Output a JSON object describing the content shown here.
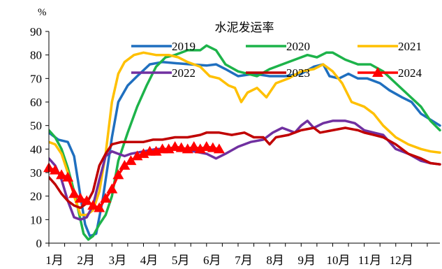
{
  "chart_data": {
    "type": "line",
    "title": "水泥发运率",
    "ylabel": "%",
    "xlabel": "",
    "ylim": [
      0,
      90
    ],
    "yticks": [
      0,
      10,
      20,
      30,
      40,
      50,
      60,
      70,
      80,
      90
    ],
    "xlim": [
      1,
      13.4
    ],
    "xtick_labels": [
      {
        "x": 1,
        "label": "1月"
      },
      {
        "x": 2,
        "label": "2月"
      },
      {
        "x": 3,
        "label": "3月"
      },
      {
        "x": 4,
        "label": "4月"
      },
      {
        "x": 5,
        "label": "5月"
      },
      {
        "x": 6,
        "label": "6月"
      },
      {
        "x": 7,
        "label": "7月"
      },
      {
        "x": 8,
        "label": "8月"
      },
      {
        "x": 9,
        "label": "9月"
      },
      {
        "x": 10,
        "label": "10月"
      },
      {
        "x": 11,
        "label": "11月"
      },
      {
        "x": 12,
        "label": "12月"
      }
    ],
    "legend_position": "top",
    "grid": false,
    "series": [
      {
        "name": "2019",
        "color": "#1f6fbf",
        "marker": "none",
        "points": [
          [
            1,
            47
          ],
          [
            1.3,
            44
          ],
          [
            1.6,
            43
          ],
          [
            1.8,
            37
          ],
          [
            2.0,
            20
          ],
          [
            2.15,
            8
          ],
          [
            2.3,
            3
          ],
          [
            2.5,
            4
          ],
          [
            2.7,
            18
          ],
          [
            3.0,
            45
          ],
          [
            3.2,
            60
          ],
          [
            3.5,
            67
          ],
          [
            3.8,
            71
          ],
          [
            4.2,
            76
          ],
          [
            4.6,
            77
          ],
          [
            5.0,
            76.5
          ],
          [
            5.5,
            76
          ],
          [
            6.0,
            75.5
          ],
          [
            6.3,
            76
          ],
          [
            6.6,
            74
          ],
          [
            7.0,
            71
          ],
          [
            7.5,
            72
          ],
          [
            8.0,
            71
          ],
          [
            8.5,
            71
          ],
          [
            9.0,
            72
          ],
          [
            9.4,
            75
          ],
          [
            9.7,
            76
          ],
          [
            9.9,
            71
          ],
          [
            10.2,
            70
          ],
          [
            10.5,
            72
          ],
          [
            10.8,
            70
          ],
          [
            11.1,
            70
          ],
          [
            11.5,
            68
          ],
          [
            11.8,
            65
          ],
          [
            12.2,
            62
          ],
          [
            12.5,
            60
          ],
          [
            12.8,
            55
          ],
          [
            13.4,
            50
          ]
        ]
      },
      {
        "name": "2020",
        "color": "#1db34a",
        "marker": "none",
        "points": [
          [
            1,
            48
          ],
          [
            1.2,
            45
          ],
          [
            1.4,
            40
          ],
          [
            1.6,
            32
          ],
          [
            1.8,
            22
          ],
          [
            2.0,
            10
          ],
          [
            2.1,
            4
          ],
          [
            2.25,
            1.5
          ],
          [
            2.4,
            3
          ],
          [
            2.6,
            8
          ],
          [
            2.8,
            12
          ],
          [
            3.0,
            20
          ],
          [
            3.2,
            35
          ],
          [
            3.5,
            47
          ],
          [
            3.8,
            58
          ],
          [
            4.1,
            67
          ],
          [
            4.4,
            75
          ],
          [
            4.7,
            79
          ],
          [
            5.0,
            80
          ],
          [
            5.4,
            82
          ],
          [
            5.8,
            82
          ],
          [
            6.0,
            84
          ],
          [
            6.3,
            82
          ],
          [
            6.6,
            76
          ],
          [
            7.0,
            73
          ],
          [
            7.3,
            72
          ],
          [
            7.6,
            71
          ],
          [
            8.0,
            74
          ],
          [
            8.4,
            76
          ],
          [
            8.8,
            78
          ],
          [
            9.2,
            80
          ],
          [
            9.5,
            79
          ],
          [
            9.8,
            81
          ],
          [
            10.0,
            81
          ],
          [
            10.4,
            78
          ],
          [
            10.8,
            76
          ],
          [
            11.2,
            76
          ],
          [
            11.6,
            73
          ],
          [
            12.0,
            68
          ],
          [
            12.4,
            63
          ],
          [
            12.8,
            58
          ],
          [
            13.1,
            52
          ],
          [
            13.4,
            48
          ]
        ]
      },
      {
        "name": "2021",
        "color": "#ffc000",
        "marker": "none",
        "points": [
          [
            1,
            43
          ],
          [
            1.2,
            42
          ],
          [
            1.4,
            38
          ],
          [
            1.6,
            30
          ],
          [
            1.8,
            20
          ],
          [
            2.0,
            12
          ],
          [
            2.2,
            12
          ],
          [
            2.4,
            14
          ],
          [
            2.6,
            22
          ],
          [
            2.8,
            38
          ],
          [
            3.0,
            60
          ],
          [
            3.2,
            72
          ],
          [
            3.4,
            77
          ],
          [
            3.7,
            80
          ],
          [
            4.0,
            81
          ],
          [
            4.4,
            80
          ],
          [
            4.8,
            80
          ],
          [
            5.1,
            79
          ],
          [
            5.4,
            77
          ],
          [
            5.8,
            75
          ],
          [
            6.1,
            71
          ],
          [
            6.4,
            70
          ],
          [
            6.7,
            67
          ],
          [
            6.9,
            66
          ],
          [
            7.1,
            60
          ],
          [
            7.3,
            64
          ],
          [
            7.6,
            66
          ],
          [
            7.9,
            62
          ],
          [
            8.2,
            68
          ],
          [
            8.6,
            70
          ],
          [
            9.0,
            73
          ],
          [
            9.4,
            74
          ],
          [
            9.7,
            76
          ],
          [
            10.0,
            73
          ],
          [
            10.3,
            68
          ],
          [
            10.6,
            60
          ],
          [
            11.0,
            58
          ],
          [
            11.3,
            55
          ],
          [
            11.6,
            50
          ],
          [
            12.0,
            45
          ],
          [
            12.4,
            42
          ],
          [
            12.8,
            40
          ],
          [
            13.1,
            39
          ],
          [
            13.4,
            38.5
          ]
        ]
      },
      {
        "name": "2022",
        "color": "#7030a0",
        "marker": "none",
        "points": [
          [
            1,
            36
          ],
          [
            1.2,
            33
          ],
          [
            1.4,
            27
          ],
          [
            1.6,
            18
          ],
          [
            1.8,
            11
          ],
          [
            2.0,
            10
          ],
          [
            2.2,
            11
          ],
          [
            2.4,
            16
          ],
          [
            2.6,
            27
          ],
          [
            2.8,
            37
          ],
          [
            3.0,
            39
          ],
          [
            3.2,
            38
          ],
          [
            3.4,
            37
          ],
          [
            3.6,
            38
          ],
          [
            4.0,
            39
          ],
          [
            4.4,
            40
          ],
          [
            4.8,
            40
          ],
          [
            5.2,
            40
          ],
          [
            5.6,
            39
          ],
          [
            6.0,
            38
          ],
          [
            6.3,
            36
          ],
          [
            6.6,
            38
          ],
          [
            7.0,
            41
          ],
          [
            7.4,
            43
          ],
          [
            7.8,
            44
          ],
          [
            8.1,
            47
          ],
          [
            8.4,
            49
          ],
          [
            8.8,
            47
          ],
          [
            9.0,
            50
          ],
          [
            9.2,
            52
          ],
          [
            9.4,
            49
          ],
          [
            9.7,
            51
          ],
          [
            10.0,
            52
          ],
          [
            10.4,
            52
          ],
          [
            10.7,
            51
          ],
          [
            11.0,
            48
          ],
          [
            11.3,
            47
          ],
          [
            11.6,
            46
          ],
          [
            12.0,
            40
          ],
          [
            12.4,
            38
          ],
          [
            12.8,
            35
          ],
          [
            13.1,
            34
          ],
          [
            13.4,
            33.5
          ]
        ]
      },
      {
        "name": "2023",
        "color": "#c00000",
        "marker": "none",
        "points": [
          [
            1,
            28
          ],
          [
            1.2,
            25
          ],
          [
            1.4,
            21
          ],
          [
            1.6,
            18
          ],
          [
            1.8,
            16
          ],
          [
            2.0,
            15
          ],
          [
            2.2,
            17
          ],
          [
            2.4,
            22
          ],
          [
            2.6,
            33
          ],
          [
            2.8,
            38
          ],
          [
            3.0,
            42
          ],
          [
            3.3,
            43
          ],
          [
            3.6,
            43
          ],
          [
            4.0,
            43
          ],
          [
            4.3,
            44
          ],
          [
            4.6,
            44
          ],
          [
            5.0,
            45
          ],
          [
            5.4,
            45
          ],
          [
            5.8,
            46
          ],
          [
            6.0,
            47
          ],
          [
            6.4,
            47
          ],
          [
            6.8,
            46
          ],
          [
            7.2,
            47
          ],
          [
            7.5,
            45
          ],
          [
            7.8,
            45
          ],
          [
            8.0,
            42
          ],
          [
            8.2,
            45
          ],
          [
            8.6,
            46
          ],
          [
            9.0,
            48
          ],
          [
            9.4,
            49
          ],
          [
            9.6,
            47
          ],
          [
            10.0,
            48
          ],
          [
            10.4,
            49
          ],
          [
            10.8,
            48
          ],
          [
            11.0,
            47
          ],
          [
            11.3,
            46
          ],
          [
            11.6,
            45
          ],
          [
            12.0,
            42
          ],
          [
            12.4,
            38
          ],
          [
            12.8,
            36
          ],
          [
            13.1,
            34
          ],
          [
            13.4,
            33.5
          ]
        ]
      },
      {
        "name": "2024",
        "color": "#ff0000",
        "marker": "triangle",
        "points": [
          [
            1.0,
            32
          ],
          [
            1.2,
            31
          ],
          [
            1.4,
            29
          ],
          [
            1.6,
            28
          ],
          [
            1.8,
            21
          ],
          [
            2.0,
            19
          ],
          [
            2.2,
            18
          ],
          [
            2.4,
            16
          ],
          [
            2.6,
            15
          ],
          [
            2.8,
            19
          ],
          [
            3.0,
            23
          ],
          [
            3.2,
            29
          ],
          [
            3.4,
            33
          ],
          [
            3.6,
            35
          ],
          [
            3.8,
            37
          ],
          [
            4.0,
            38
          ],
          [
            4.2,
            39
          ],
          [
            4.4,
            39
          ],
          [
            4.6,
            40
          ],
          [
            4.8,
            40
          ],
          [
            5.0,
            41
          ],
          [
            5.2,
            40.5
          ],
          [
            5.4,
            40
          ],
          [
            5.6,
            41
          ],
          [
            5.8,
            40
          ],
          [
            6.0,
            41
          ],
          [
            6.2,
            40.5
          ],
          [
            6.4,
            40
          ]
        ]
      }
    ]
  }
}
